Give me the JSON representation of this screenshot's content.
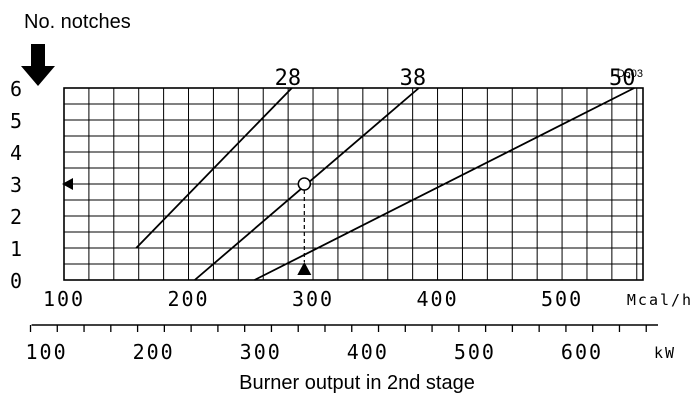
{
  "chart_data": {
    "type": "line",
    "title": "",
    "code": "D503",
    "ylabel": "No. notches",
    "xlabel": "Burner output in 2nd stage",
    "x_unit_top": "Mcal/h",
    "x_unit_bottom": "kW",
    "ylim": [
      0,
      6
    ],
    "xlim_mcal": [
      100,
      565
    ],
    "yticks": [
      "0",
      "1",
      "2",
      "3",
      "4",
      "5",
      "6"
    ],
    "xticks_mcal": [
      "100",
      "200",
      "300",
      "400",
      "500"
    ],
    "xticks_kw": [
      "100",
      "200",
      "300",
      "400",
      "500",
      "600"
    ],
    "series": [
      {
        "name": "28",
        "x": [
          158,
          283
        ],
        "y": [
          1,
          6
        ]
      },
      {
        "name": "38",
        "x": [
          205,
          385
        ],
        "y": [
          0,
          6
        ]
      },
      {
        "name": "50",
        "x": [
          253,
          558
        ],
        "y": [
          0,
          6
        ]
      }
    ],
    "example_point": {
      "x": 293,
      "y": 3
    }
  }
}
